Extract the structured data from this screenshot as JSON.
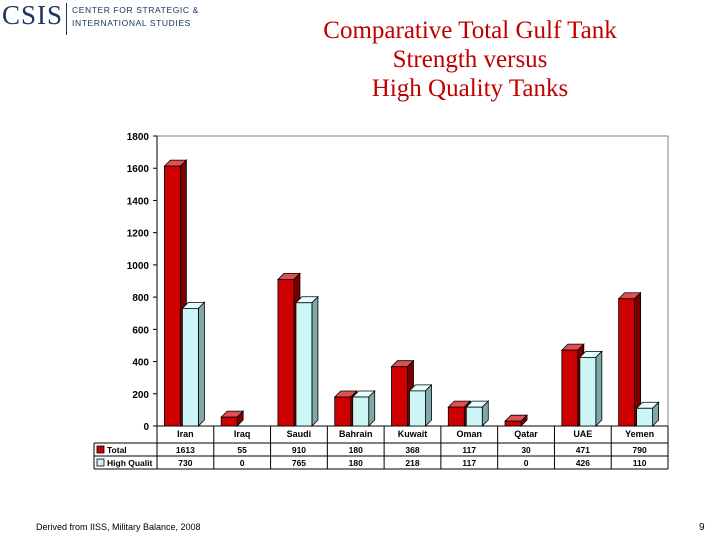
{
  "logo": {
    "mark": "CSIS",
    "line1": "CENTER FOR STRATEGIC &",
    "line2": "INTERNATIONAL STUDIES"
  },
  "title": "Comparative Total Gulf Tank\nStrength versus\nHigh Quality Tanks",
  "footer": {
    "source": "Derived from IISS, Military Balance, 2008",
    "page": "9"
  },
  "colors": {
    "total": "#cc0000",
    "high_quality": "#ccf5f5",
    "accent": "#c00000"
  },
  "chart_data": {
    "type": "bar",
    "categories": [
      "Iran",
      "Iraq",
      "Saudi",
      "Bahrain",
      "Kuwait",
      "Oman",
      "Qatar",
      "UAE",
      "Yemen"
    ],
    "series": [
      {
        "name": "Total",
        "values": [
          1613,
          55,
          910,
          180,
          368,
          117,
          30,
          471,
          790
        ]
      },
      {
        "name": "High Qualit",
        "values": [
          730,
          0,
          765,
          180,
          218,
          117,
          0,
          426,
          110
        ]
      }
    ],
    "yticks": [
      0,
      200,
      400,
      600,
      800,
      1000,
      1200,
      1400,
      1600,
      1800
    ],
    "ylim": [
      0,
      1800
    ],
    "grid": false,
    "legend": "data table below chart",
    "title": "",
    "xlabel": "",
    "ylabel": ""
  }
}
